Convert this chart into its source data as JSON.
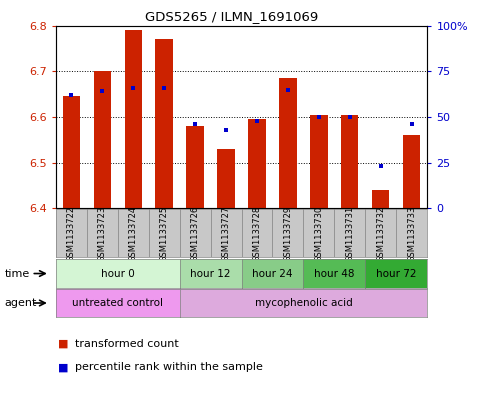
{
  "title": "GDS5265 / ILMN_1691069",
  "samples": [
    "GSM1133722",
    "GSM1133723",
    "GSM1133724",
    "GSM1133725",
    "GSM1133726",
    "GSM1133727",
    "GSM1133728",
    "GSM1133729",
    "GSM1133730",
    "GSM1133731",
    "GSM1133732",
    "GSM1133733"
  ],
  "transformed_count": [
    6.645,
    6.7,
    6.79,
    6.77,
    6.58,
    6.53,
    6.595,
    6.685,
    6.605,
    6.605,
    6.44,
    6.56
  ],
  "percentile_rank": [
    62,
    64,
    66,
    66,
    46,
    43,
    48,
    65,
    50,
    50,
    23,
    46
  ],
  "ylim_left": [
    6.4,
    6.8
  ],
  "ylim_right": [
    0,
    100
  ],
  "yticks_left": [
    6.4,
    6.5,
    6.6,
    6.7,
    6.8
  ],
  "yticks_right": [
    0,
    25,
    50,
    75,
    100
  ],
  "bar_color": "#cc2200",
  "dot_color": "#0000cc",
  "bar_bottom": 6.4,
  "time_groups": [
    {
      "label": "hour 0",
      "start": 0,
      "end": 3,
      "color": "#d4f5d4"
    },
    {
      "label": "hour 12",
      "start": 4,
      "end": 5,
      "color": "#aaddaa"
    },
    {
      "label": "hour 24",
      "start": 6,
      "end": 7,
      "color": "#88cc88"
    },
    {
      "label": "hour 48",
      "start": 8,
      "end": 9,
      "color": "#55bb55"
    },
    {
      "label": "hour 72",
      "start": 10,
      "end": 11,
      "color": "#33aa33"
    }
  ],
  "agent_groups": [
    {
      "label": "untreated control",
      "start": 0,
      "end": 3,
      "color": "#ee99ee"
    },
    {
      "label": "mycophenolic acid",
      "start": 4,
      "end": 11,
      "color": "#ddaadd"
    }
  ],
  "legend_items": [
    {
      "label": "transformed count",
      "color": "#cc2200"
    },
    {
      "label": "percentile rank within the sample",
      "color": "#0000cc"
    }
  ],
  "ylabel_left_color": "#cc2200",
  "ylabel_right_color": "#0000cc",
  "sample_bg_color": "#c8c8c8",
  "bar_width": 0.55,
  "n_samples": 12
}
